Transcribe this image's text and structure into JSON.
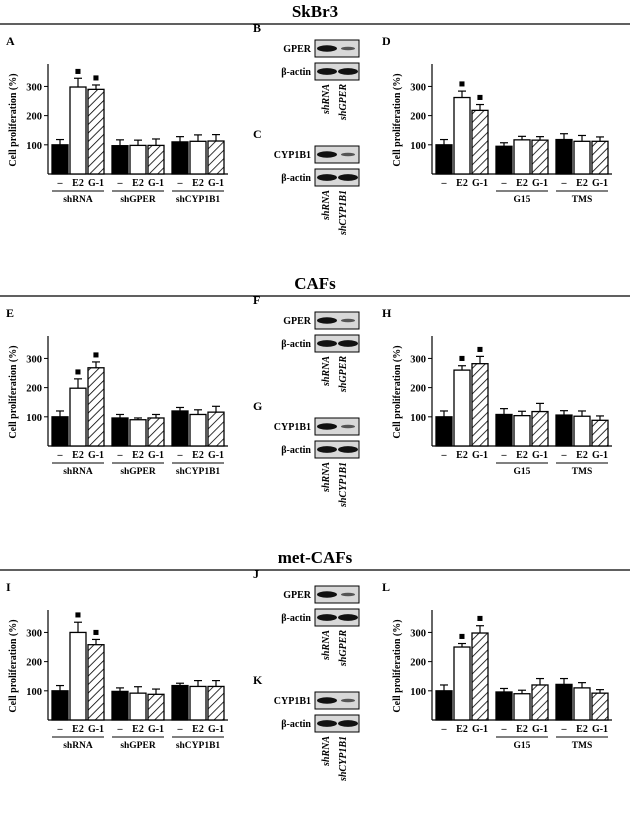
{
  "ylabel": "Cell proliferation (%)",
  "y_ticks": [
    100,
    200,
    300
  ],
  "ylim": [
    0,
    370
  ],
  "loading_control": "β-actin",
  "sig_marker": "■",
  "sections": [
    {
      "title": "SkBr3",
      "letters": {
        "left": "A",
        "blot1": "B",
        "blot2": "C",
        "right": "D"
      },
      "blot1": {
        "protein": "GPER",
        "lanes": [
          "shRNA",
          "shGPER"
        ]
      },
      "blot2": {
        "protein": "CYP1B1",
        "lanes": [
          "shRNA",
          "shCYP1B1"
        ]
      }
    },
    {
      "title": "CAFs",
      "letters": {
        "left": "E",
        "blot1": "F",
        "blot2": "G",
        "right": "H"
      },
      "blot1": {
        "protein": "GPER",
        "lanes": [
          "shRNA",
          "shGPER"
        ]
      },
      "blot2": {
        "protein": "CYP1B1",
        "lanes": [
          "shRNA",
          "shCYP1B1"
        ]
      }
    },
    {
      "title": "met-CAFs",
      "letters": {
        "left": "I",
        "blot1": "J",
        "blot2": "K",
        "right": "L"
      },
      "blot1": {
        "protein": "GPER",
        "lanes": [
          "shRNA",
          "shGPER"
        ]
      },
      "blot2": {
        "protein": "CYP1B1",
        "lanes": [
          "shRNA",
          "shCYP1B1"
        ]
      }
    }
  ],
  "chart_data": [
    {
      "panel": "A",
      "type": "bar",
      "ylabel": "Cell proliferation (%)",
      "ylim": [
        0,
        370
      ],
      "categories": [
        "–",
        "E2",
        "G-1"
      ],
      "groups": [
        {
          "name": "shRNA",
          "values": [
            100,
            298,
            290
          ],
          "errors": [
            18,
            30,
            15
          ],
          "significant": [
            false,
            true,
            true
          ]
        },
        {
          "name": "shGPER",
          "values": [
            97,
            98,
            98
          ],
          "errors": [
            20,
            18,
            22
          ],
          "significant": [
            false,
            false,
            false
          ]
        },
        {
          "name": "shCYP1B1",
          "values": [
            110,
            112,
            113
          ],
          "errors": [
            18,
            22,
            22
          ],
          "significant": [
            false,
            false,
            false
          ]
        }
      ]
    },
    {
      "panel": "D",
      "type": "bar",
      "ylabel": "Cell proliferation (%)",
      "ylim": [
        0,
        370
      ],
      "categories": [
        "–",
        "E2",
        "G-1"
      ],
      "groups": [
        {
          "name": "",
          "values": [
            100,
            262,
            218
          ],
          "errors": [
            18,
            22,
            20
          ],
          "significant": [
            false,
            true,
            true
          ]
        },
        {
          "name": "G15",
          "values": [
            95,
            117,
            116
          ],
          "errors": [
            12,
            12,
            12
          ],
          "significant": [
            false,
            false,
            false
          ]
        },
        {
          "name": "TMS",
          "values": [
            118,
            112,
            112
          ],
          "errors": [
            20,
            20,
            15
          ],
          "significant": [
            false,
            false,
            false
          ]
        }
      ]
    },
    {
      "panel": "E",
      "type": "bar",
      "ylabel": "Cell proliferation (%)",
      "ylim": [
        0,
        370
      ],
      "categories": [
        "–",
        "E2",
        "G-1"
      ],
      "groups": [
        {
          "name": "shRNA",
          "values": [
            100,
            198,
            268
          ],
          "errors": [
            20,
            32,
            20
          ],
          "significant": [
            false,
            true,
            true
          ]
        },
        {
          "name": "shGPER",
          "values": [
            96,
            90,
            96
          ],
          "errors": [
            12,
            6,
            12
          ],
          "significant": [
            false,
            false,
            false
          ]
        },
        {
          "name": "shCYP1B1",
          "values": [
            120,
            108,
            116
          ],
          "errors": [
            12,
            16,
            20
          ],
          "significant": [
            false,
            false,
            false
          ]
        }
      ]
    },
    {
      "panel": "H",
      "type": "bar",
      "ylabel": "Cell proliferation (%)",
      "ylim": [
        0,
        370
      ],
      "categories": [
        "–",
        "E2",
        "G-1"
      ],
      "groups": [
        {
          "name": "",
          "values": [
            100,
            260,
            282
          ],
          "errors": [
            20,
            15,
            25
          ],
          "significant": [
            false,
            true,
            true
          ]
        },
        {
          "name": "G15",
          "values": [
            108,
            104,
            118
          ],
          "errors": [
            20,
            15,
            28
          ],
          "significant": [
            false,
            false,
            false
          ]
        },
        {
          "name": "TMS",
          "values": [
            106,
            102,
            88
          ],
          "errors": [
            15,
            18,
            15
          ],
          "significant": [
            false,
            false,
            false
          ]
        }
      ]
    },
    {
      "panel": "I",
      "type": "bar",
      "ylabel": "Cell proliferation (%)",
      "ylim": [
        0,
        370
      ],
      "categories": [
        "–",
        "E2",
        "G-1"
      ],
      "groups": [
        {
          "name": "shRNA",
          "values": [
            100,
            300,
            258
          ],
          "errors": [
            18,
            35,
            18
          ],
          "significant": [
            false,
            true,
            true
          ]
        },
        {
          "name": "shGPER",
          "values": [
            98,
            92,
            88
          ],
          "errors": [
            12,
            22,
            18
          ],
          "significant": [
            false,
            false,
            false
          ]
        },
        {
          "name": "shCYP1B1",
          "values": [
            118,
            115,
            115
          ],
          "errors": [
            8,
            20,
            20
          ],
          "significant": [
            false,
            false,
            false
          ]
        }
      ]
    },
    {
      "panel": "L",
      "type": "bar",
      "ylabel": "Cell proliferation (%)",
      "ylim": [
        0,
        370
      ],
      "categories": [
        "–",
        "E2",
        "G-1"
      ],
      "groups": [
        {
          "name": "",
          "values": [
            100,
            250,
            298
          ],
          "errors": [
            20,
            12,
            25
          ],
          "significant": [
            false,
            true,
            true
          ]
        },
        {
          "name": "G15",
          "values": [
            96,
            90,
            120
          ],
          "errors": [
            12,
            12,
            22
          ],
          "significant": [
            false,
            false,
            false
          ]
        },
        {
          "name": "TMS",
          "values": [
            122,
            110,
            92
          ],
          "errors": [
            20,
            18,
            12
          ],
          "significant": [
            false,
            false,
            false
          ]
        }
      ]
    }
  ]
}
